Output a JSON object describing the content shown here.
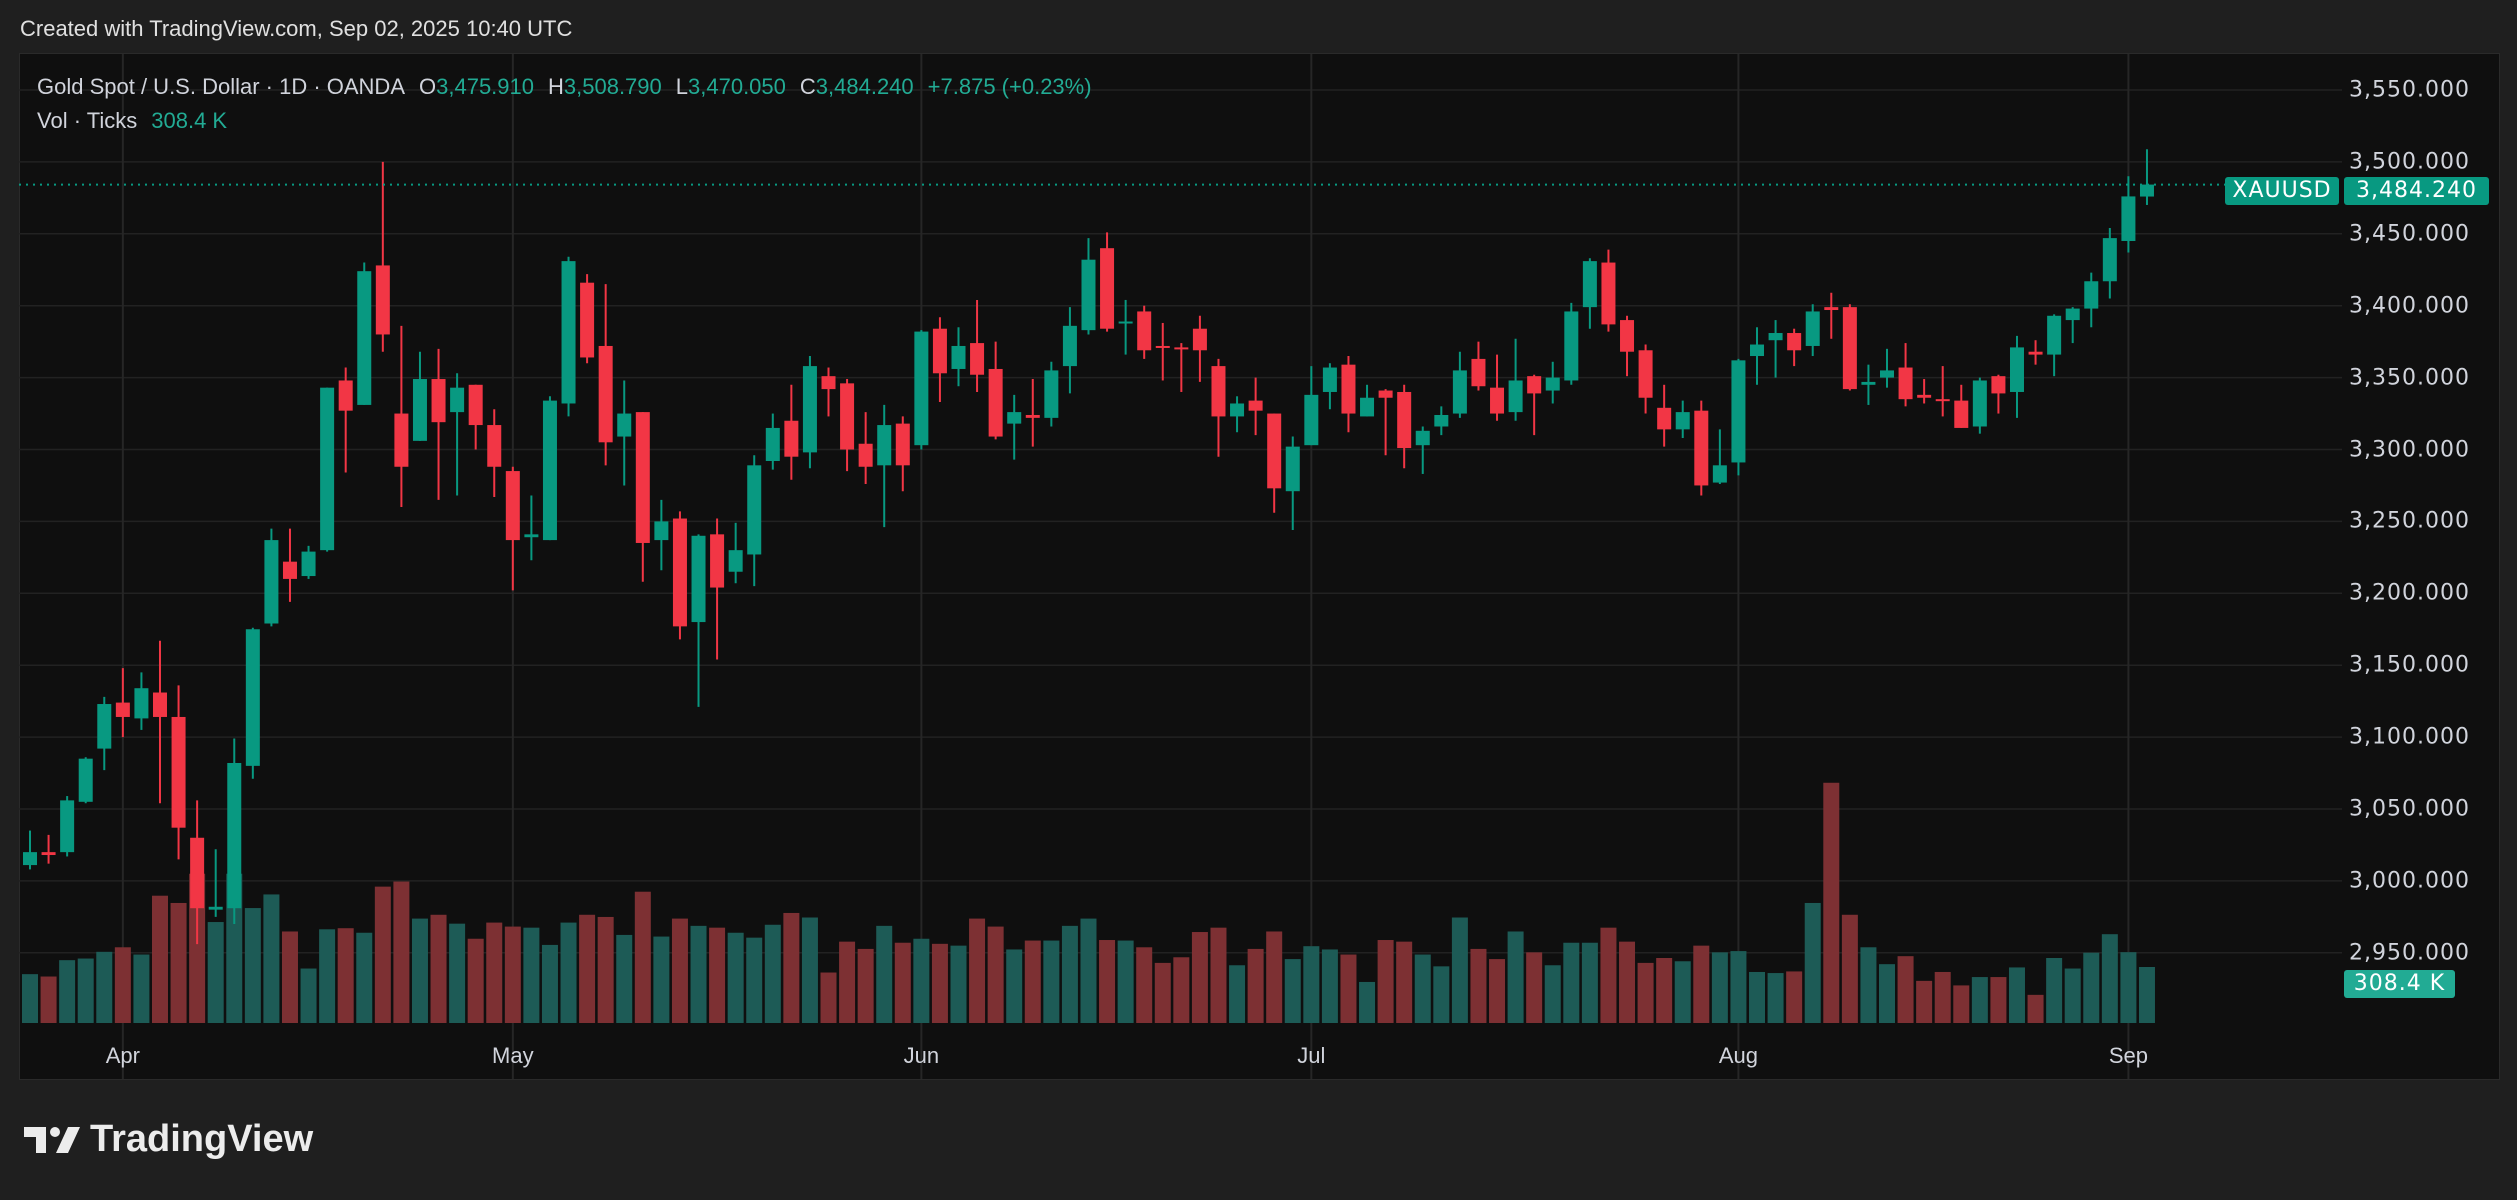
{
  "header": {
    "created": "Created with TradingView.com, Sep 02, 2025 10:40 UTC"
  },
  "legend": {
    "symbol": "Gold Spot / U.S. Dollar · 1D · OANDA",
    "o_label": "O",
    "o": "3,475.910",
    "h_label": "H",
    "h": "3,508.790",
    "l_label": "L",
    "l": "3,470.050",
    "c_label": "C",
    "c": "3,484.240",
    "change": "+7.875 (+0.23%)",
    "vol_label": "Vol · Ticks",
    "vol": "308.4 K"
  },
  "price_tag": {
    "symbol": "XAUUSD",
    "value": "3,484.240"
  },
  "volume_tag": "308.4 K",
  "logo": {
    "text": "TradingView"
  },
  "colors": {
    "up": "#089981",
    "down": "#f23645",
    "vol_up": "#1d5b56",
    "vol_down": "#7d3033",
    "tag": "#089981",
    "vol_tag": "#22ab94"
  },
  "chart_data": {
    "type": "candlestick",
    "title": "Gold Spot / U.S. Dollar · 1D · OANDA",
    "ylim": [
      2950,
      3550
    ],
    "y_ticks": [
      "3,550.000",
      "3,500.000",
      "3,450.000",
      "3,400.000",
      "3,350.000",
      "3,300.000",
      "3,250.000",
      "3,200.000",
      "3,150.000",
      "3,100.000",
      "3,050.000",
      "3,000.000",
      "2,950.000"
    ],
    "y_tick_values": [
      3550,
      3500,
      3450,
      3400,
      3350,
      3300,
      3250,
      3200,
      3150,
      3100,
      3050,
      3000,
      2950
    ],
    "x_ticks": [
      {
        "label": "Apr",
        "bar": 5
      },
      {
        "label": "May",
        "bar": 26
      },
      {
        "label": "Jun",
        "bar": 48
      },
      {
        "label": "Jul",
        "bar": 69
      },
      {
        "label": "Aug",
        "bar": 92
      },
      {
        "label": "Sep",
        "bar": 113
      }
    ],
    "last_price": 3484.24,
    "volume_unit": "K",
    "ohlcv": [
      [
        3011,
        3035,
        3008,
        3020,
        269
      ],
      [
        3020,
        3032,
        3012,
        3018,
        256
      ],
      [
        3020,
        3059,
        3017,
        3056,
        346
      ],
      [
        3055,
        3086,
        3054,
        3085,
        355
      ],
      [
        3092,
        3128,
        3077,
        3123,
        392
      ],
      [
        3124,
        3148,
        3100,
        3114,
        417
      ],
      [
        3113,
        3145,
        3105,
        3134,
        377
      ],
      [
        3131,
        3167,
        3054,
        3114,
        701
      ],
      [
        3114,
        3136,
        3015,
        3037,
        661
      ],
      [
        3030,
        3056,
        2956,
        2981,
        822
      ],
      [
        2980,
        3022,
        2975,
        2982,
        556
      ],
      [
        2981,
        3099,
        2970,
        3082,
        822
      ],
      [
        3080,
        3176,
        3071,
        3175,
        633
      ],
      [
        3179,
        3245,
        3177,
        3237,
        708
      ],
      [
        3222,
        3245,
        3194,
        3210,
        504
      ],
      [
        3212,
        3233,
        3210,
        3229,
        300
      ],
      [
        3230,
        3343,
        3229,
        3343,
        516
      ],
      [
        3348,
        3357,
        3284,
        3327,
        522
      ],
      [
        3331,
        3430,
        3331,
        3424,
        497
      ],
      [
        3428,
        3500,
        3368,
        3380,
        751
      ],
      [
        3325,
        3386,
        3260,
        3288,
        779
      ],
      [
        3306,
        3368,
        3306,
        3349,
        575
      ],
      [
        3349,
        3370,
        3265,
        3319,
        596
      ],
      [
        3326,
        3353,
        3268,
        3343,
        547
      ],
      [
        3345,
        3345,
        3300,
        3317,
        464
      ],
      [
        3317,
        3328,
        3267,
        3288,
        553
      ],
      [
        3285,
        3288,
        3202,
        3237,
        531
      ],
      [
        3239,
        3268,
        3223,
        3241,
        525
      ],
      [
        3237,
        3337,
        3237,
        3334,
        430
      ],
      [
        3332,
        3434,
        3323,
        3431,
        553
      ],
      [
        3416,
        3422,
        3360,
        3364,
        596
      ],
      [
        3372,
        3415,
        3289,
        3305,
        584
      ],
      [
        3309,
        3348,
        3275,
        3325,
        485
      ],
      [
        3326,
        3326,
        3208,
        3235,
        723
      ],
      [
        3237,
        3265,
        3216,
        3250,
        476
      ],
      [
        3252,
        3257,
        3168,
        3177,
        575
      ],
      [
        3180,
        3241,
        3121,
        3240,
        535
      ],
      [
        3241,
        3252,
        3154,
        3204,
        525
      ],
      [
        3215,
        3249,
        3207,
        3230,
        497
      ],
      [
        3227,
        3296,
        3205,
        3289,
        470
      ],
      [
        3292,
        3325,
        3286,
        3315,
        541
      ],
      [
        3320,
        3345,
        3279,
        3295,
        606
      ],
      [
        3298,
        3365,
        3287,
        3358,
        581
      ],
      [
        3351,
        3357,
        3323,
        3342,
        278
      ],
      [
        3346,
        3349,
        3285,
        3300,
        448
      ],
      [
        3304,
        3326,
        3276,
        3288,
        408
      ],
      [
        3289,
        3331,
        3246,
        3317,
        535
      ],
      [
        3318,
        3323,
        3271,
        3289,
        442
      ],
      [
        3303,
        3383,
        3300,
        3382,
        464
      ],
      [
        3384,
        3392,
        3333,
        3353,
        436
      ],
      [
        3356,
        3385,
        3344,
        3372,
        426
      ],
      [
        3374,
        3404,
        3340,
        3352,
        575
      ],
      [
        3356,
        3375,
        3307,
        3309,
        531
      ],
      [
        3318,
        3338,
        3293,
        3326,
        405
      ],
      [
        3324,
        3349,
        3302,
        3322,
        454
      ],
      [
        3322,
        3361,
        3316,
        3355,
        454
      ],
      [
        3358,
        3399,
        3339,
        3386,
        535
      ],
      [
        3383,
        3447,
        3380,
        3432,
        575
      ],
      [
        3440,
        3451,
        3382,
        3384,
        457
      ],
      [
        3388,
        3404,
        3366,
        3389,
        454
      ],
      [
        3396,
        3400,
        3363,
        3369,
        417
      ],
      [
        3372,
        3388,
        3348,
        3371,
        331
      ],
      [
        3371,
        3374,
        3340,
        3370,
        362
      ],
      [
        3384,
        3393,
        3347,
        3369,
        501
      ],
      [
        3358,
        3363,
        3295,
        3323,
        525
      ],
      [
        3323,
        3337,
        3312,
        3332,
        318
      ],
      [
        3334,
        3350,
        3310,
        3327,
        408
      ],
      [
        3325,
        3325,
        3256,
        3273,
        504
      ],
      [
        3271,
        3309,
        3244,
        3302,
        352
      ],
      [
        3303,
        3358,
        3303,
        3338,
        423
      ],
      [
        3340,
        3360,
        3328,
        3357,
        405
      ],
      [
        3359,
        3365,
        3312,
        3325,
        377
      ],
      [
        3323,
        3345,
        3323,
        3336,
        226
      ],
      [
        3341,
        3342,
        3296,
        3336,
        457
      ],
      [
        3340,
        3345,
        3287,
        3301,
        448
      ],
      [
        3303,
        3316,
        3283,
        3313,
        377
      ],
      [
        3316,
        3330,
        3310,
        3324,
        312
      ],
      [
        3325,
        3368,
        3322,
        3355,
        581
      ],
      [
        3363,
        3375,
        3341,
        3344,
        408
      ],
      [
        3343,
        3366,
        3320,
        3325,
        352
      ],
      [
        3326,
        3377,
        3320,
        3348,
        504
      ],
      [
        3351,
        3352,
        3310,
        3339,
        389
      ],
      [
        3341,
        3361,
        3332,
        3350,
        318
      ],
      [
        3348,
        3402,
        3345,
        3396,
        442
      ],
      [
        3399,
        3433,
        3384,
        3431,
        442
      ],
      [
        3430,
        3439,
        3382,
        3387,
        525
      ],
      [
        3390,
        3393,
        3351,
        3368,
        448
      ],
      [
        3369,
        3373,
        3325,
        3336,
        331
      ],
      [
        3329,
        3345,
        3302,
        3314,
        358
      ],
      [
        3314,
        3334,
        3308,
        3326,
        340
      ],
      [
        3327,
        3334,
        3268,
        3275,
        426
      ],
      [
        3277,
        3314,
        3276,
        3289,
        389
      ],
      [
        3291,
        3363,
        3282,
        3362,
        396
      ],
      [
        3365,
        3385,
        3345,
        3373,
        281
      ],
      [
        3376,
        3390,
        3350,
        3381,
        275
      ],
      [
        3381,
        3384,
        3358,
        3369,
        284
      ],
      [
        3372,
        3401,
        3365,
        3396,
        661
      ],
      [
        3399,
        3409,
        3377,
        3397,
        1323
      ],
      [
        3399,
        3401,
        3341,
        3342,
        596
      ],
      [
        3345,
        3359,
        3331,
        3347,
        417
      ],
      [
        3350,
        3370,
        3343,
        3355,
        324
      ],
      [
        3357,
        3374,
        3330,
        3335,
        368
      ],
      [
        3338,
        3349,
        3332,
        3336,
        232
      ],
      [
        3335,
        3358,
        3323,
        3334,
        281
      ],
      [
        3334,
        3345,
        3315,
        3315,
        207
      ],
      [
        3316,
        3350,
        3311,
        3348,
        253
      ],
      [
        3351,
        3352,
        3325,
        3339,
        253
      ],
      [
        3340,
        3379,
        3322,
        3371,
        306
      ],
      [
        3368,
        3376,
        3359,
        3366,
        155
      ],
      [
        3366,
        3394,
        3351,
        3393,
        358
      ],
      [
        3390,
        3399,
        3374,
        3398,
        300
      ],
      [
        3398,
        3423,
        3385,
        3417,
        387
      ],
      [
        3417,
        3454,
        3405,
        3447,
        489
      ],
      [
        3445,
        3490,
        3437,
        3476,
        390
      ],
      [
        3475.91,
        3508.79,
        3470.05,
        3484.24,
        308.4
      ]
    ]
  }
}
